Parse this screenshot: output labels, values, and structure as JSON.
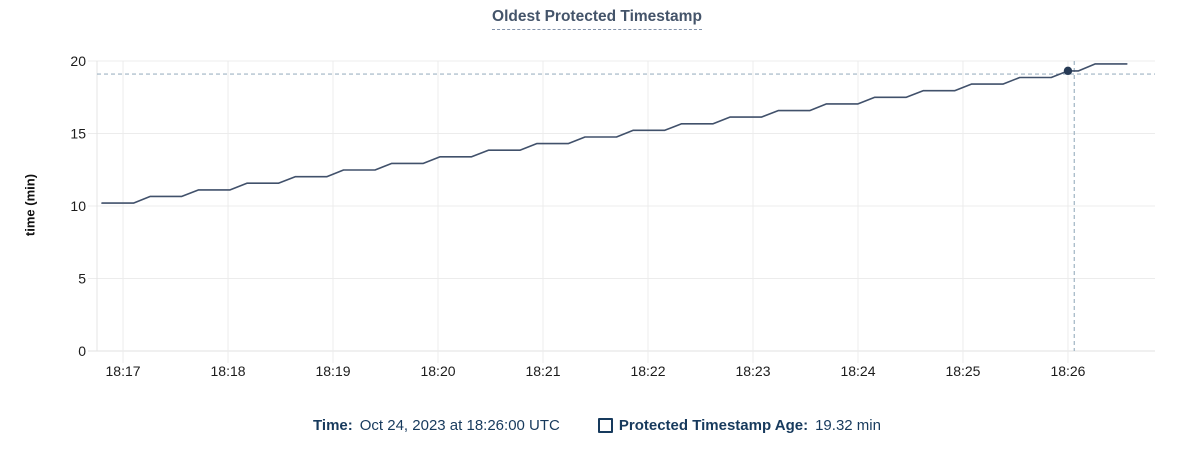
{
  "header": {
    "title": "Oldest Protected Timestamp"
  },
  "legend": {
    "time_label": "Time:",
    "time_value": "Oct 24, 2023 at 18:26:00 UTC",
    "series": [
      {
        "label": "Protected Timestamp Age:",
        "value": "19.32 min",
        "swatch": "checkbox-outline"
      }
    ]
  },
  "colors": {
    "title_text": "#44546a",
    "title_underline": "#8393ab",
    "legend_text": "#173a5d",
    "series_line": "#41516b",
    "hover_dot": "#263a55",
    "crosshair": "#9fb3c3",
    "gridline": "#ececec",
    "baseline": "#e2e2e2",
    "axis_line": "#e4e4e4",
    "tick_text": "#1c1c1c"
  },
  "chart_data": {
    "type": "line",
    "title": "Oldest Protected Timestamp",
    "xlabel": "",
    "ylabel": "time (min)",
    "ylim": [
      0,
      20
    ],
    "y_ticks": [
      0,
      5,
      10,
      15,
      20
    ],
    "x_tick_labels": [
      "18:17",
      "18:18",
      "18:19",
      "18:20",
      "18:21",
      "18:22",
      "18:23",
      "18:24",
      "18:25",
      "18:26"
    ],
    "x_tick_minutes": [
      0,
      1,
      2,
      3,
      4,
      5,
      6,
      7,
      8,
      9
    ],
    "xlim_minutes": [
      -0.248,
      9.829
    ],
    "grid": true,
    "legend_position": "bottom",
    "series": [
      {
        "name": "Protected Timestamp Age",
        "unit": "min",
        "points": [
          [
            -0.2,
            10.2
          ],
          [
            0.1,
            10.2
          ],
          [
            0.26,
            10.66
          ],
          [
            0.56,
            10.66
          ],
          [
            0.72,
            11.11
          ],
          [
            1.02,
            11.11
          ],
          [
            1.18,
            11.57
          ],
          [
            1.48,
            11.57
          ],
          [
            1.64,
            12.02
          ],
          [
            1.94,
            12.02
          ],
          [
            2.1,
            12.48
          ],
          [
            2.4,
            12.48
          ],
          [
            2.56,
            12.94
          ],
          [
            2.86,
            12.94
          ],
          [
            3.02,
            13.39
          ],
          [
            3.32,
            13.39
          ],
          [
            3.48,
            13.85
          ],
          [
            3.78,
            13.85
          ],
          [
            3.94,
            14.3
          ],
          [
            4.24,
            14.3
          ],
          [
            4.4,
            14.76
          ],
          [
            4.7,
            14.76
          ],
          [
            4.86,
            15.22
          ],
          [
            5.16,
            15.22
          ],
          [
            5.32,
            15.67
          ],
          [
            5.62,
            15.67
          ],
          [
            5.78,
            16.13
          ],
          [
            6.08,
            16.13
          ],
          [
            6.24,
            16.58
          ],
          [
            6.54,
            16.58
          ],
          [
            6.7,
            17.04
          ],
          [
            7.0,
            17.04
          ],
          [
            7.16,
            17.5
          ],
          [
            7.46,
            17.5
          ],
          [
            7.62,
            17.95
          ],
          [
            7.92,
            17.95
          ],
          [
            8.08,
            18.41
          ],
          [
            8.38,
            18.41
          ],
          [
            8.54,
            18.86
          ],
          [
            8.84,
            18.86
          ],
          [
            9.0,
            19.32
          ],
          [
            9.1,
            19.32
          ],
          [
            9.26,
            19.8
          ],
          [
            9.56,
            19.8
          ]
        ]
      }
    ],
    "hover": {
      "t_min": 9.0,
      "value": 19.32,
      "time_label": "18:26:00",
      "crosshair_t_min": 9.06,
      "crosshair_value": 19.1
    }
  }
}
